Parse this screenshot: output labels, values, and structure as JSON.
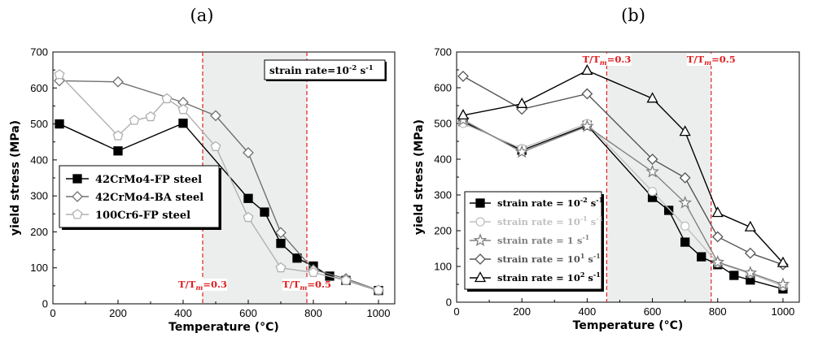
{
  "chart_data": [
    {
      "type": "line",
      "panel_label": "(a)",
      "xlabel": "Temperature (°C)",
      "ylabel": "yield stress (MPa)",
      "xlim": [
        0,
        1050
      ],
      "ylim": [
        0,
        700
      ],
      "xticks": [
        0,
        200,
        400,
        600,
        800,
        1000
      ],
      "yticks": [
        0,
        100,
        200,
        300,
        400,
        500,
        600,
        700
      ],
      "shaded_region": [
        460,
        780
      ],
      "vlines": [
        {
          "x": 460,
          "label": "T/T",
          "sub": "m",
          "tail": "=0.3",
          "label_pos": "bottom"
        },
        {
          "x": 780,
          "label": "T/T",
          "sub": "m",
          "tail": "=0.5",
          "label_pos": "bottom"
        }
      ],
      "annotation": {
        "text": "strain rate=10",
        "sup": "-2",
        "tail": " s",
        "sup2": "-1"
      },
      "legend": {
        "position": "center-left"
      },
      "series": [
        {
          "name": "42CrMo4-FP steel",
          "color": "#000000",
          "marker": "square",
          "filled": true,
          "x": [
            20,
            200,
            400,
            600,
            650,
            700,
            750,
            800,
            850,
            900,
            1000
          ],
          "y": [
            500,
            425,
            502,
            293,
            255,
            168,
            127,
            105,
            77,
            65,
            37
          ]
        },
        {
          "name": "42CrMo4-BA steel",
          "color": "#707070",
          "marker": "diamond",
          "filled": false,
          "x": [
            20,
            200,
            400,
            500,
            600,
            700,
            800,
            900,
            1000
          ],
          "y": [
            620,
            617,
            560,
            523,
            420,
            198,
            95,
            70,
            38
          ]
        },
        {
          "name": "100Cr6-FP steel",
          "color": "#b0b0b0",
          "marker": "pentagon",
          "filled": false,
          "x": [
            20,
            200,
            250,
            300,
            350,
            400,
            500,
            600,
            700,
            800,
            900,
            1000
          ],
          "y": [
            637,
            467,
            510,
            520,
            570,
            540,
            437,
            240,
            100,
            87,
            65,
            38
          ]
        }
      ]
    },
    {
      "type": "line",
      "panel_label": "(b)",
      "xlabel": "Temperature (°C)",
      "ylabel": "yield stress (MPa)",
      "xlim": [
        0,
        1050
      ],
      "ylim": [
        0,
        700
      ],
      "xticks": [
        0,
        200,
        400,
        600,
        800,
        1000
      ],
      "yticks": [
        0,
        100,
        200,
        300,
        400,
        500,
        600,
        700
      ],
      "shaded_region": [
        460,
        780
      ],
      "vlines": [
        {
          "x": 460,
          "label": "T/T",
          "sub": "m",
          "tail": "=0.3",
          "label_pos": "top"
        },
        {
          "x": 780,
          "label": "T/T",
          "sub": "m",
          "tail": "=0.5",
          "label_pos": "top"
        }
      ],
      "legend": {
        "position": "bottom-left"
      },
      "series": [
        {
          "name": "strain rate = 10",
          "sup": "-2",
          "tail": " s",
          "sup2": "-1",
          "color": "#000000",
          "marker": "square",
          "filled": true,
          "x": [
            20,
            200,
            400,
            600,
            650,
            700,
            750,
            800,
            850,
            900,
            1000
          ],
          "y": [
            505,
            425,
            495,
            293,
            257,
            168,
            127,
            105,
            75,
            62,
            37
          ]
        },
        {
          "name": "strain rate = 10",
          "sup": "-1",
          "tail": " s",
          "sup2": "-1",
          "color": "#c0c0c0",
          "marker": "circle",
          "filled": false,
          "x": [
            20,
            200,
            400,
            600,
            700,
            800,
            900,
            1000
          ],
          "y": [
            500,
            430,
            500,
            310,
            213,
            110,
            80,
            45
          ]
        },
        {
          "name": "strain rate = 1",
          "sup": "",
          "tail": "      s",
          "sup2": "-1",
          "color": "#808080",
          "marker": "star",
          "filled": false,
          "x": [
            20,
            200,
            400,
            600,
            700,
            800,
            900,
            1000
          ],
          "y": [
            510,
            420,
            492,
            365,
            278,
            112,
            82,
            50
          ]
        },
        {
          "name": "strain rate = 10",
          "sup": "1",
          "tail": " s",
          "sup2": "-1",
          "color": "#555555",
          "marker": "diamond",
          "filled": false,
          "x": [
            20,
            200,
            400,
            600,
            700,
            800,
            900,
            1000
          ],
          "y": [
            632,
            540,
            583,
            400,
            348,
            183,
            137,
            105
          ]
        },
        {
          "name": "strain rate = 10",
          "sup": "2",
          "tail": " s",
          "sup2": "-1",
          "color": "#000000",
          "marker": "triangle",
          "filled": false,
          "x": [
            20,
            200,
            400,
            600,
            700,
            800,
            900,
            1000
          ],
          "y": [
            523,
            555,
            648,
            570,
            477,
            250,
            210,
            110
          ]
        }
      ]
    }
  ]
}
